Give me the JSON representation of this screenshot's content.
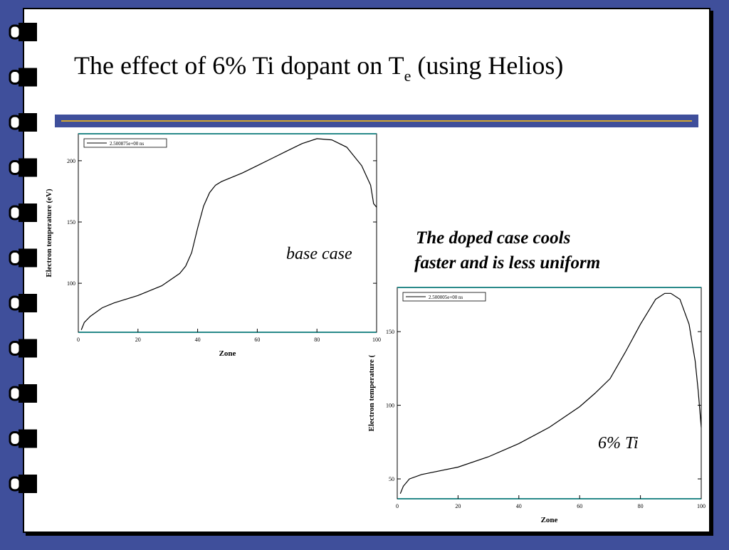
{
  "slide": {
    "title": "The effect of 6% Ti dopant on T",
    "title_subscript": "e",
    "title_end": " (using Helios)",
    "note_line1": "The doped case cools",
    "note_line2": "faster and is less uniform"
  },
  "chart_data": [
    {
      "type": "line",
      "annotation": "base case",
      "xlabel": "Zone",
      "ylabel": "Electron temperature (eV)",
      "xlim": [
        0,
        100
      ],
      "ylim": [
        60,
        222
      ],
      "xticks": [
        0,
        20,
        40,
        60,
        80,
        100
      ],
      "yticks": [
        100,
        150,
        200
      ],
      "x": [
        1,
        2,
        4,
        8,
        12,
        20,
        28,
        34,
        36,
        38,
        40,
        42,
        44,
        46,
        48,
        55,
        60,
        70,
        75,
        80,
        85,
        90,
        95,
        98,
        99,
        100
      ],
      "series": [
        {
          "name": "2.500875e+00 ns",
          "color": "#000000",
          "values": [
            62,
            68,
            73,
            80,
            84,
            90,
            98,
            108,
            114,
            125,
            145,
            163,
            174,
            180,
            183,
            190,
            196,
            208,
            214,
            218,
            217,
            211,
            196,
            180,
            165,
            162
          ]
        }
      ]
    },
    {
      "type": "line",
      "annotation": "6% Ti",
      "xlabel": "Zone",
      "ylabel": "Electron temperature (",
      "xlim": [
        0,
        100
      ],
      "ylim": [
        36.5,
        180
      ],
      "xticks": [
        0,
        20,
        40,
        60,
        80,
        100
      ],
      "yticks": [
        50,
        100,
        150
      ],
      "x": [
        1,
        2,
        4,
        8,
        20,
        30,
        40,
        50,
        60,
        65,
        70,
        75,
        80,
        85,
        88,
        90,
        93,
        96,
        98,
        99,
        100
      ],
      "series": [
        {
          "name": "2.500005e+00 ns",
          "color": "#000000",
          "values": [
            40,
            45,
            50,
            53,
            58,
            65,
            74,
            85,
            99,
            108,
            118,
            136,
            155,
            172,
            176,
            176,
            172,
            155,
            130,
            110,
            85
          ]
        }
      ]
    }
  ]
}
